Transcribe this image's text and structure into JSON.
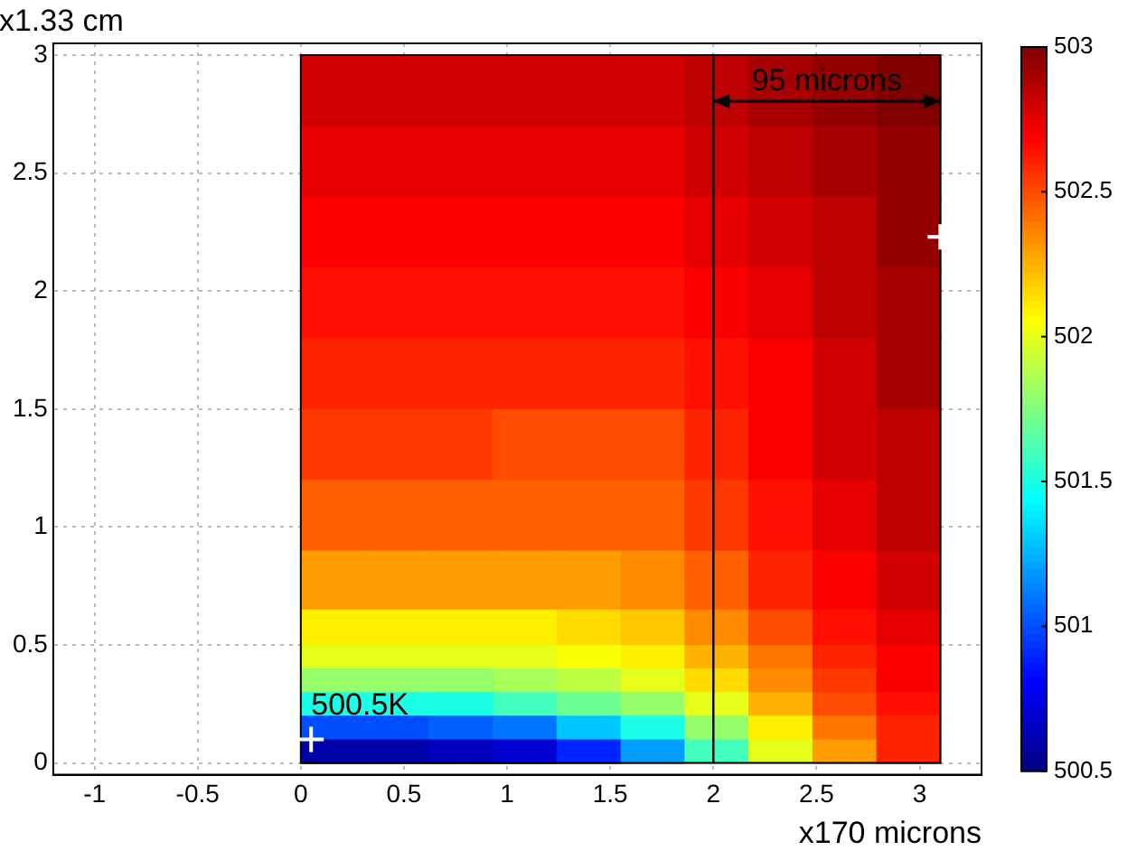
{
  "chart_data": {
    "type": "heatmap",
    "xlabel": "x170 microns",
    "ylabel": "x1.33 cm",
    "x": [
      0.155,
      0.465,
      0.775,
      1.085,
      1.395,
      1.705,
      2.015,
      2.325,
      2.635,
      2.945
    ],
    "y": [
      2.85,
      2.55,
      2.25,
      1.95,
      1.65,
      1.35,
      1.05,
      0.75,
      0.55,
      0.45,
      0.35,
      0.25,
      0.15,
      0.05
    ],
    "cells": [
      [
        502.8,
        502.8,
        502.8,
        502.8,
        502.8,
        502.8,
        502.85,
        502.9,
        502.95,
        503
      ],
      [
        502.75,
        502.75,
        502.75,
        502.75,
        502.75,
        502.75,
        502.8,
        502.85,
        502.9,
        502.95
      ],
      [
        502.7,
        502.7,
        502.7,
        502.7,
        502.7,
        502.7,
        502.75,
        502.8,
        502.85,
        502.95
      ],
      [
        502.65,
        502.65,
        502.65,
        502.65,
        502.65,
        502.65,
        502.7,
        502.75,
        502.85,
        502.9
      ],
      [
        502.6,
        502.6,
        502.6,
        502.6,
        502.6,
        502.6,
        502.65,
        502.7,
        502.8,
        502.9
      ],
      [
        502.55,
        502.55,
        502.55,
        502.5,
        502.5,
        502.5,
        502.6,
        502.7,
        502.8,
        502.85
      ],
      [
        502.45,
        502.45,
        502.45,
        502.45,
        502.45,
        502.45,
        502.55,
        502.65,
        502.75,
        502.85
      ],
      [
        502.3,
        502.3,
        502.3,
        502.3,
        502.3,
        502.35,
        502.45,
        502.6,
        502.7,
        502.8
      ],
      [
        502.1,
        502.1,
        502.1,
        502.1,
        502.15,
        502.2,
        502.35,
        502.5,
        502.65,
        502.75
      ],
      [
        502,
        502,
        502,
        502,
        502.05,
        502.1,
        502.25,
        502.4,
        502.6,
        502.7
      ],
      [
        501.8,
        501.8,
        501.8,
        501.85,
        501.9,
        502,
        502.15,
        502.35,
        502.55,
        502.7
      ],
      [
        501.5,
        501.5,
        501.5,
        501.6,
        501.7,
        501.8,
        502,
        502.25,
        502.5,
        502.65
      ],
      [
        501,
        501,
        501.05,
        501.1,
        501.3,
        501.5,
        501.8,
        502.1,
        502.4,
        502.6
      ],
      [
        500.6,
        500.6,
        500.65,
        500.7,
        500.9,
        501.2,
        501.6,
        502,
        502.3,
        502.6
      ]
    ],
    "clim": [
      500.5,
      503
    ],
    "cticks": [
      500.5,
      501,
      501.5,
      502,
      502.5,
      503
    ],
    "series": [
      {
        "type": "scatter",
        "color": "#ffffff",
        "x": [
          0.05,
          3.1
        ],
        "values": [
          0.1,
          2.23
        ]
      }
    ],
    "marker": "cross",
    "ref_lines": [
      {
        "axis": "x",
        "value": 2,
        "color": "#000000"
      }
    ],
    "annotations": [
      {
        "text": "500.5K",
        "x": 0.05,
        "y": 0.1
      },
      "95 microns"
    ],
    "xlim": [
      -1.2,
      3.3
    ],
    "xticks": [
      -1,
      -0.5,
      0,
      0.5,
      1,
      1.5,
      2,
      2.5,
      3
    ],
    "ylim": [
      -0.05,
      3.05
    ],
    "yticks": [
      0,
      0.5,
      1,
      1.5,
      2,
      2.5,
      3
    ],
    "grid": true
  }
}
